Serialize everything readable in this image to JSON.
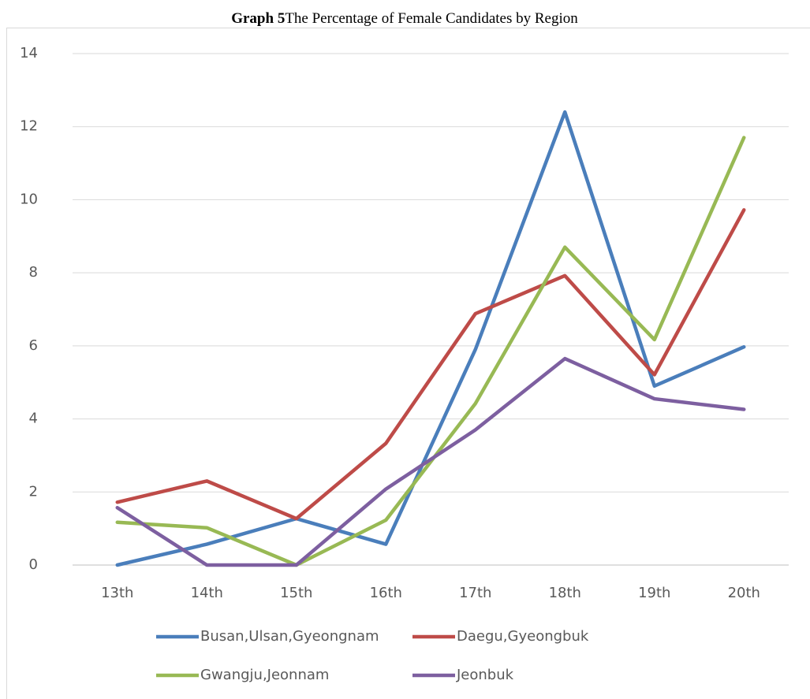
{
  "chart_data": {
    "type": "line",
    "title_prefix": "Graph 5",
    "title": "The Percentage of Female Candidates by Region",
    "categories": [
      "13th",
      "14th",
      "15th",
      "16th",
      "17th",
      "18th",
      "19th",
      "20th"
    ],
    "series": [
      {
        "name": "Busan,Ulsan,Gyeongnam",
        "color": "#4a7ebb",
        "values": [
          0,
          0.57,
          1.27,
          0.57,
          5.9,
          12.4,
          4.9,
          5.97
        ]
      },
      {
        "name": "Daegu,Gyeongbuk",
        "color": "#be4b48",
        "values": [
          1.72,
          2.3,
          1.27,
          3.33,
          6.88,
          7.92,
          5.21,
          9.72
        ]
      },
      {
        "name": "Gwangju,Jeonnam",
        "color": "#98b954",
        "values": [
          1.17,
          1.02,
          0,
          1.23,
          4.42,
          8.7,
          6.17,
          11.7
        ]
      },
      {
        "name": "Jeonbuk",
        "color": "#7d5fa0",
        "values": [
          1.57,
          0,
          0,
          2.08,
          3.7,
          5.65,
          4.55,
          4.26
        ]
      }
    ],
    "ylim": [
      0,
      14
    ],
    "yticks": [
      0,
      2,
      4,
      6,
      8,
      10,
      12,
      14
    ],
    "grid": true,
    "legend": "bottom"
  }
}
